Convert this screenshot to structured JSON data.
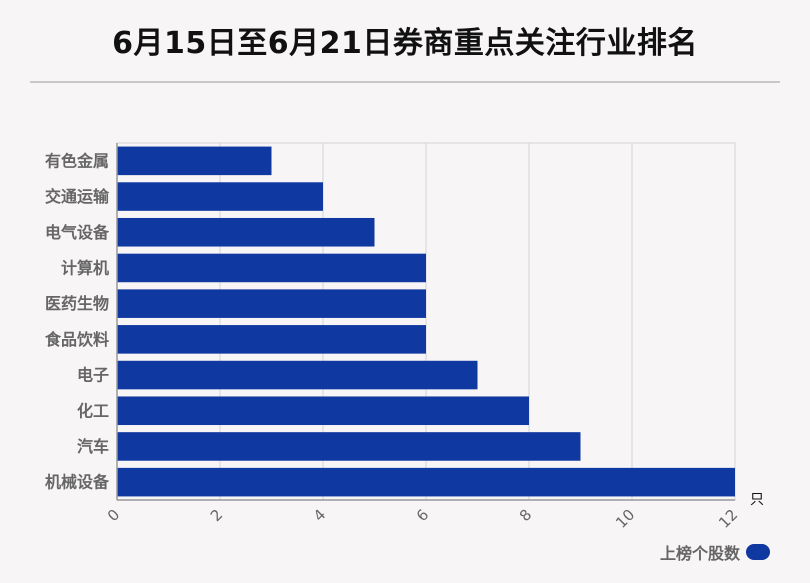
{
  "title": "6月15日至6月21日券商重点关注行业排名",
  "legend": {
    "label": "上榜个股数"
  },
  "colors": {
    "bar": "#0f38a0",
    "grid": "#d5d5d5",
    "axis": "#999999",
    "text": "#666666"
  },
  "chart_data": {
    "type": "bar",
    "orientation": "horizontal",
    "categories": [
      "有色金属",
      "交通运输",
      "电气设备",
      "计算机",
      "医药生物",
      "食品饮料",
      "电子",
      "化工",
      "汽车",
      "机械设备"
    ],
    "series": [
      {
        "name": "上榜个股数",
        "values": [
          3,
          4,
          5,
          6,
          6,
          6,
          7,
          8,
          9,
          12
        ]
      }
    ],
    "xlim": [
      0,
      12
    ],
    "xticks": [
      0,
      2,
      4,
      6,
      8,
      10,
      12
    ],
    "xunit": "只",
    "grid": true,
    "legend_position": "bottom-right"
  }
}
